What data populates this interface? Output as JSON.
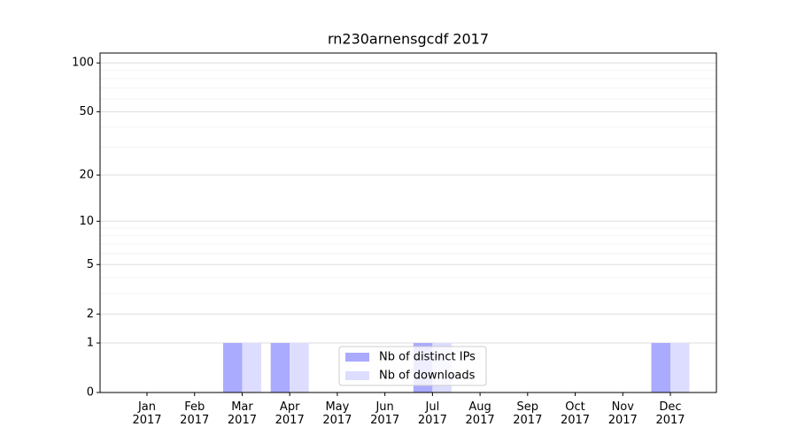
{
  "chart_data": {
    "type": "bar",
    "title": "rn230arnensgcdf 2017",
    "categories": [
      "Jan\n2017",
      "Feb\n2017",
      "Mar\n2017",
      "Apr\n2017",
      "May\n2017",
      "Jun\n2017",
      "Jul\n2017",
      "Aug\n2017",
      "Sep\n2017",
      "Oct\n2017",
      "Nov\n2017",
      "Dec\n2017"
    ],
    "series": [
      {
        "name": "Nb of distinct IPs",
        "color": "#aaaaff",
        "values": [
          0,
          0,
          1,
          1,
          0,
          0,
          1,
          0,
          0,
          0,
          0,
          1
        ]
      },
      {
        "name": "Nb of downloads",
        "color": "#ddddff",
        "values": [
          0,
          0,
          1,
          1,
          0,
          0,
          1,
          0,
          0,
          0,
          0,
          1
        ]
      }
    ],
    "yscale": "log1p",
    "ylim": [
      0,
      115
    ],
    "yticks": [
      0,
      1,
      2,
      5,
      10,
      20,
      50,
      100
    ],
    "minor_yticks": [
      3,
      4,
      6,
      7,
      8,
      9,
      30,
      40,
      60,
      70,
      80,
      90
    ],
    "grid": true,
    "legend": "lower center"
  }
}
